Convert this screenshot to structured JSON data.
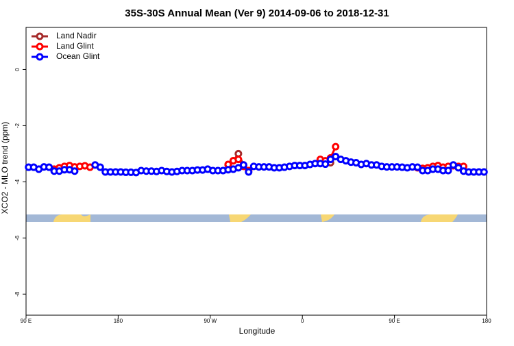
{
  "chart_data": {
    "type": "line",
    "title": "35S-30S Annual Mean (Ver 9)   2014-09-06 to 2018-12-31",
    "x_label": "Longitude",
    "y_label": "XCO2 - MLO trend (ppm)",
    "xlim": [
      90,
      540
    ],
    "xticks": [
      {
        "value": 90,
        "label": "90 E"
      },
      {
        "value": 180,
        "label": "180"
      },
      {
        "value": 270,
        "label": "90 W"
      },
      {
        "value": 360,
        "label": "0"
      },
      {
        "value": 450,
        "label": "90 E"
      },
      {
        "value": 540,
        "label": "180"
      }
    ],
    "ylim": [
      -8.75,
      1.5
    ],
    "yticks": [
      0,
      -2,
      -4,
      -6,
      -8
    ],
    "legend": "top-left",
    "x": [
      92.5,
      97.5,
      102.5,
      107.5,
      112.5,
      117.5,
      122.5,
      127.5,
      132.5,
      137.5,
      142.5,
      147.5,
      152.5,
      157.5,
      162.5,
      167.5,
      172.5,
      177.5,
      182.5,
      187.5,
      192.5,
      197.5,
      202.5,
      207.5,
      212.5,
      217.5,
      222.5,
      227.5,
      232.5,
      237.5,
      242.5,
      247.5,
      252.5,
      257.5,
      262.5,
      267.5,
      272.5,
      277.5,
      282.5,
      287.5,
      292.5,
      297.5,
      302.5,
      307.5,
      312.5,
      317.5,
      322.5,
      327.5,
      332.5,
      337.5,
      342.5,
      347.5,
      352.5,
      357.5,
      362.5,
      367.5,
      372.5,
      377.5,
      382.5,
      387.5,
      392.5,
      397.5,
      402.5,
      407.5,
      412.5,
      417.5,
      422.5,
      427.5,
      432.5,
      437.5,
      442.5,
      447.5,
      452.5,
      457.5,
      462.5,
      467.5,
      472.5,
      477.5,
      482.5,
      487.5,
      492.5,
      497.5,
      502.5,
      507.5,
      512.5,
      517.5,
      522.5,
      527.5,
      532.5,
      537.5
    ],
    "series": [
      {
        "name": "Land Nadir",
        "color": "#a52a2a",
        "values": [
          null,
          null,
          null,
          null,
          null,
          null,
          null,
          null,
          null,
          null,
          null,
          null,
          null,
          null,
          null,
          null,
          null,
          null,
          null,
          null,
          null,
          null,
          null,
          null,
          null,
          null,
          null,
          null,
          null,
          null,
          null,
          null,
          null,
          null,
          null,
          null,
          null,
          null,
          null,
          -3.4,
          -3.25,
          -3.0,
          -3.4,
          null,
          null,
          null,
          null,
          null,
          null,
          null,
          null,
          null,
          null,
          null,
          null,
          null,
          null,
          -3.22,
          -3.3,
          -3.32,
          null,
          null,
          null,
          null,
          null,
          null,
          null,
          null,
          null,
          null,
          null,
          null,
          null,
          null,
          null,
          null,
          null,
          null,
          null,
          null,
          null,
          null,
          null,
          null,
          null,
          null,
          null,
          null,
          null,
          null
        ]
      },
      {
        "name": "Land Glint",
        "color": "#ff0000",
        "values": [
          null,
          null,
          null,
          null,
          null,
          -3.55,
          -3.5,
          -3.45,
          -3.42,
          -3.47,
          -3.45,
          -3.43,
          -3.48,
          null,
          null,
          null,
          null,
          null,
          null,
          null,
          null,
          null,
          null,
          null,
          null,
          null,
          null,
          null,
          null,
          null,
          null,
          null,
          null,
          null,
          null,
          null,
          null,
          null,
          null,
          -3.38,
          -3.25,
          -3.2,
          -3.45,
          -3.6,
          null,
          null,
          null,
          null,
          null,
          null,
          null,
          null,
          null,
          null,
          null,
          null,
          null,
          -3.2,
          -3.25,
          -3.15,
          -2.75,
          null,
          null,
          null,
          null,
          null,
          null,
          null,
          null,
          null,
          null,
          null,
          null,
          null,
          null,
          null,
          -3.5,
          -3.52,
          -3.5,
          -3.45,
          -3.42,
          -3.48,
          -3.45,
          -3.43,
          -3.45,
          -3.45,
          null,
          null,
          null,
          null
        ]
      },
      {
        "name": "Ocean Glint",
        "color": "#0000ff",
        "values": [
          -3.48,
          -3.48,
          -3.55,
          -3.47,
          -3.48,
          -3.62,
          -3.62,
          -3.57,
          -3.57,
          -3.62,
          null,
          null,
          null,
          -3.4,
          -3.48,
          -3.65,
          -3.65,
          -3.65,
          -3.65,
          -3.66,
          -3.66,
          -3.67,
          -3.6,
          -3.62,
          -3.62,
          -3.63,
          -3.6,
          -3.63,
          -3.65,
          -3.63,
          -3.6,
          -3.6,
          -3.6,
          -3.58,
          -3.58,
          -3.55,
          -3.6,
          -3.6,
          -3.6,
          -3.57,
          -3.55,
          -3.5,
          -3.4,
          -3.65,
          -3.45,
          -3.47,
          -3.47,
          -3.47,
          -3.5,
          -3.5,
          -3.48,
          -3.45,
          -3.42,
          -3.42,
          -3.42,
          -3.38,
          -3.35,
          -3.35,
          -3.37,
          -3.2,
          -3.1,
          -3.2,
          -3.25,
          -3.3,
          -3.32,
          -3.38,
          -3.35,
          -3.4,
          -3.4,
          -3.45,
          -3.47,
          -3.47,
          -3.47,
          -3.48,
          -3.5,
          -3.47,
          -3.48,
          -3.6,
          -3.6,
          -3.55,
          -3.55,
          -3.6,
          -3.6,
          -3.4,
          -3.5,
          -3.62,
          -3.65,
          -3.65,
          -3.65,
          -3.65
        ]
      }
    ]
  }
}
